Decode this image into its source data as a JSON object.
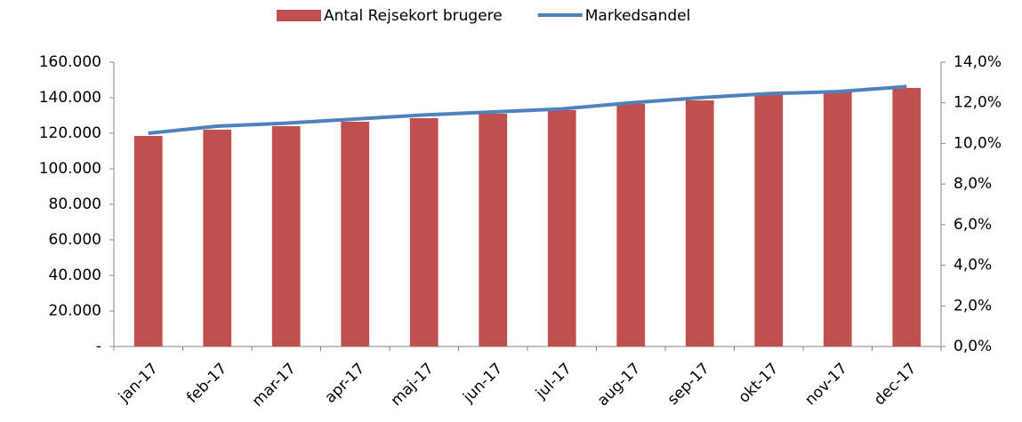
{
  "chart_data": {
    "type": "bar",
    "categories": [
      "jan-17",
      "feb-17",
      "mar-17",
      "apr-17",
      "maj-17",
      "jun-17",
      "jul-17",
      "aug-17",
      "sep-17",
      "okt-17",
      "nov-17",
      "dec-17"
    ],
    "series": [
      {
        "name": "Antal Rejsekort brugere",
        "type": "bar",
        "color": "#c0504d",
        "axis": "y",
        "values": [
          118500,
          122000,
          124000,
          126500,
          128500,
          131000,
          133000,
          136500,
          138500,
          141500,
          143000,
          145500
        ]
      },
      {
        "name": "Markedsandel",
        "type": "line",
        "color": "#4f81bd",
        "axis": "y2",
        "values": [
          10.5,
          10.85,
          11.0,
          11.2,
          11.4,
          11.55,
          11.7,
          12.0,
          12.25,
          12.45,
          12.55,
          12.8
        ]
      }
    ],
    "ylim": [
      0,
      160000
    ],
    "yticks": [
      {
        "value": 0,
        "label": "-"
      },
      {
        "value": 20000,
        "label": "20.000"
      },
      {
        "value": 40000,
        "label": "40.000"
      },
      {
        "value": 60000,
        "label": "60.000"
      },
      {
        "value": 80000,
        "label": "80.000"
      },
      {
        "value": 100000,
        "label": "100.000"
      },
      {
        "value": 120000,
        "label": "120.000"
      },
      {
        "value": 140000,
        "label": "140.000"
      },
      {
        "value": 160000,
        "label": "160.000"
      }
    ],
    "y2lim": [
      0,
      14
    ],
    "y2ticks": [
      {
        "value": 0,
        "label": "0,0%"
      },
      {
        "value": 2,
        "label": "2,0%"
      },
      {
        "value": 4,
        "label": "4,0%"
      },
      {
        "value": 6,
        "label": "6,0%"
      },
      {
        "value": 8,
        "label": "8,0%"
      },
      {
        "value": 10,
        "label": "10,0%"
      },
      {
        "value": 12,
        "label": "12,0%"
      },
      {
        "value": 14,
        "label": "14,0%"
      }
    ],
    "legend": "top",
    "grid": false
  }
}
